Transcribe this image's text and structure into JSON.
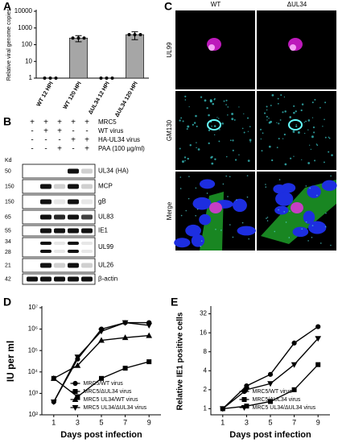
{
  "chart_data": [
    {
      "type": "bar",
      "panel": "A",
      "ylabel": "Relative viral genome copies",
      "categories": [
        "WT 12 HPI",
        "WT 120 HPI",
        "ΔUL34 12 HPI",
        "ΔUL34 120 HPI"
      ],
      "values": [
        1,
        250,
        1,
        400
      ],
      "errors": [
        0,
        100,
        0,
        200
      ],
      "color": "#a6a6a6",
      "log_y": true,
      "ylim": [
        1,
        10000
      ],
      "yticks": [
        1,
        10,
        100,
        1000,
        10000
      ]
    },
    {
      "type": "line",
      "panel": "D",
      "ylabel": "IU per ml",
      "xlabel": "Days post infection",
      "x": [
        1,
        3,
        5,
        7,
        9
      ],
      "xlim": [
        0,
        10
      ],
      "xticks": [
        1,
        3,
        5,
        7,
        9
      ],
      "log_y": true,
      "ylim": [
        100,
        10000000
      ],
      "yticks": [
        {
          "value": 100,
          "label": "10²"
        },
        {
          "value": 1000,
          "label": "10³"
        },
        {
          "value": 10000,
          "label": "10⁴"
        },
        {
          "value": 100000,
          "label": "10⁵"
        },
        {
          "value": 1000000,
          "label": "10⁶"
        },
        {
          "value": 10000000,
          "label": "10⁷"
        }
      ],
      "legend": "lower right",
      "series": [
        {
          "name": "MRC5/WT virus",
          "color": "#000000",
          "marker": "circle",
          "values": [
            400,
            40000,
            1000000,
            2000000,
            2000000
          ]
        },
        {
          "name": "MRC5/ΔUL34 virus",
          "color": "#000000",
          "marker": "square",
          "values": [
            5000,
            700,
            5000,
            15000,
            30000
          ]
        },
        {
          "name": "MRC5 UL34/WT virus",
          "color": "#000000",
          "marker": "triangle",
          "values": [
            5000,
            20000,
            300000,
            400000,
            500000
          ]
        },
        {
          "name": "MRC5 UL34/ΔUL34 virus",
          "color": "#000000",
          "marker": "triangle-down",
          "values": [
            400,
            50000,
            800000,
            2000000,
            1500000
          ]
        }
      ]
    },
    {
      "type": "line",
      "panel": "E",
      "ylabel": "Relative IE1 positive cells",
      "xlabel": "Days post infection",
      "x": [
        1,
        3,
        5,
        7,
        9
      ],
      "xlim": [
        0,
        10
      ],
      "xticks": [
        1,
        3,
        5,
        7,
        9
      ],
      "log_y": true,
      "ylim": [
        0.8,
        40
      ],
      "yticks": [
        1,
        2,
        4,
        8,
        16,
        32
      ],
      "legend": "lower right",
      "series": [
        {
          "name": "MRC5/WT virus",
          "color": "#000000",
          "marker": "circle",
          "values": [
            1,
            2.3,
            3.5,
            11,
            20
          ]
        },
        {
          "name": "MRC5/ΔUL34 virus",
          "color": "#000000",
          "marker": "square",
          "values": [
            1,
            1.1,
            1.3,
            2,
            5
          ]
        },
        {
          "name": "MRC5 UL34/ΔUL34 virus",
          "color": "#000000",
          "marker": "triangle-down",
          "values": [
            1,
            2,
            2.5,
            5,
            13
          ]
        }
      ]
    }
  ],
  "blot": {
    "panel": "B",
    "kd_title": "Kd",
    "conditions": [
      {
        "label": "MRC5",
        "signs": [
          "+",
          "+",
          "+",
          "+",
          "+"
        ]
      },
      {
        "label": "WT virus",
        "signs": [
          "-",
          "+",
          "+",
          "-",
          "-"
        ]
      },
      {
        "label": "HA-UL34 virus",
        "signs": [
          "-",
          "-",
          "-",
          "+",
          "+"
        ]
      },
      {
        "label": "PAA (100 µg/ml)",
        "signs": [
          "-",
          "-",
          "+",
          "-",
          "+"
        ]
      }
    ],
    "rows": [
      {
        "label": "UL34 (HA)",
        "kd": [
          50
        ]
      },
      {
        "label": "MCP",
        "kd": [
          150
        ]
      },
      {
        "label": "gB",
        "kd": [
          150
        ]
      },
      {
        "label": "UL83",
        "kd": [
          65
        ]
      },
      {
        "label": "IE1",
        "kd": [
          55
        ]
      },
      {
        "label": "UL99",
        "kd": [
          34,
          28
        ]
      },
      {
        "label": "UL26",
        "kd": [
          21
        ]
      },
      {
        "label": "β-actin",
        "kd": [
          42
        ]
      }
    ]
  },
  "microscopy": {
    "panel": "C",
    "columns": [
      "WT",
      "ΔUL34"
    ],
    "rows": [
      "UL99",
      "GM130",
      "Merge"
    ]
  }
}
